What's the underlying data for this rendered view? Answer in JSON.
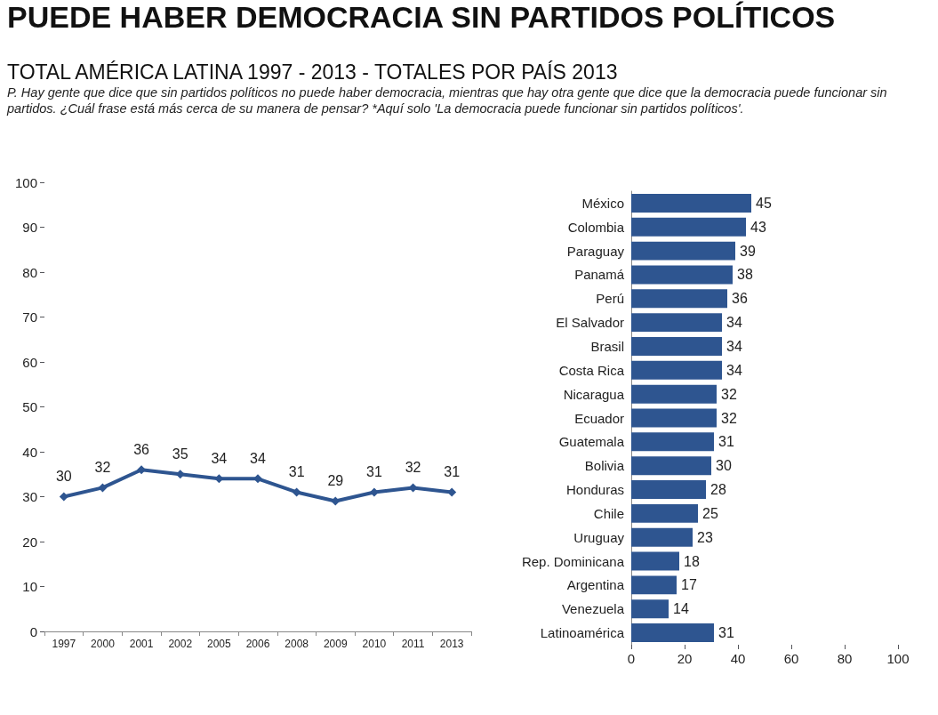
{
  "chart_data": [
    {
      "type": "line",
      "title": "PUEDE HABER DEMOCRACIA SIN PARTIDOS POLÍTICOS",
      "subtitle": "TOTAL AMÉRICA LATINA 1997 - 2013 - TOTALES POR PAÍS 2013",
      "annotations": [
        "P. Hay gente que dice que sin partidos políticos no puede haber democracia, mientras que hay otra gente que dice que la democracia puede funcionar sin partidos. ¿Cuál frase está más cerca de su manera de pensar? *Aquí solo 'La democracia puede funcionar sin partidos políticos'."
      ],
      "categories": [
        "1997",
        "2000",
        "2001",
        "2002",
        "2005",
        "2006",
        "2008",
        "2009",
        "2010",
        "2011",
        "2013"
      ],
      "series": [
        {
          "color": "#2e5590",
          "values": [
            30,
            32,
            36,
            35,
            34,
            34,
            31,
            29,
            31,
            32,
            31
          ]
        }
      ],
      "ylim": [
        0,
        100
      ],
      "yticks": [
        0,
        10,
        20,
        30,
        40,
        50,
        60,
        70,
        80,
        90,
        100
      ],
      "data_labels": true,
      "marker": "diamond",
      "grid": false
    },
    {
      "type": "bar",
      "orientation": "horizontal",
      "categories": [
        "México",
        "Colombia",
        "Paraguay",
        "Panamá",
        "Perú",
        "El Salvador",
        "Brasil",
        "Costa Rica",
        "Nicaragua",
        "Ecuador",
        "Guatemala",
        "Bolivia",
        "Honduras",
        "Chile",
        "Uruguay",
        "Rep. Dominicana",
        "Argentina",
        "Venezuela",
        "Latinoamérica"
      ],
      "series": [
        {
          "color": "#2e5590",
          "values": [
            45,
            43,
            39,
            38,
            36,
            34,
            34,
            34,
            32,
            32,
            31,
            30,
            28,
            25,
            23,
            18,
            17,
            14,
            31
          ]
        }
      ],
      "xlim": [
        0,
        100
      ],
      "xticks": [
        0,
        20,
        40,
        60,
        80,
        100
      ],
      "data_labels": true,
      "grid": false
    }
  ]
}
